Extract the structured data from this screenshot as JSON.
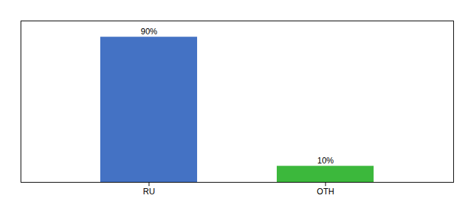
{
  "chart_data": {
    "type": "bar",
    "categories": [
      "RU",
      "OTH"
    ],
    "values": [
      90,
      10
    ],
    "value_labels": [
      "90%",
      "10%"
    ],
    "colors": [
      "#4472c4",
      "#3cb83c"
    ],
    "ylim": [
      0,
      100
    ],
    "data_labels": true,
    "tick_labels": "x"
  }
}
